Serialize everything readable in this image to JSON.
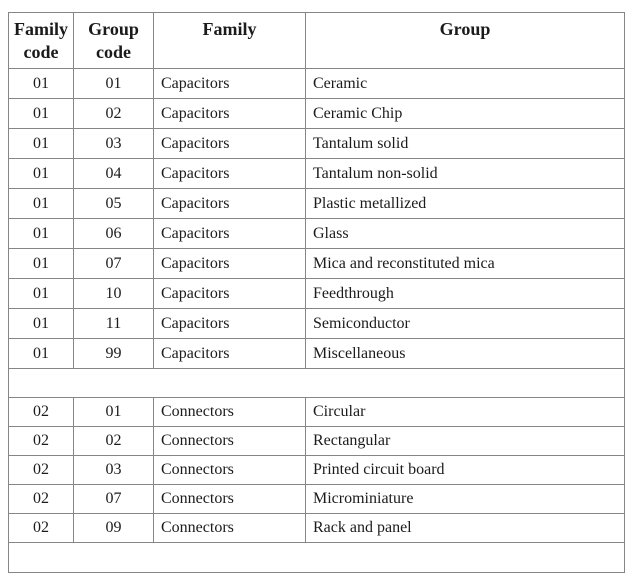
{
  "page": {
    "background_color": "#ffffff",
    "text_color": "#1b1b1b",
    "border_color": "#868686"
  },
  "table": {
    "headers": [
      {
        "label": "Family code"
      },
      {
        "label": "Group code"
      },
      {
        "label": "Family"
      },
      {
        "label": "Group"
      }
    ],
    "rows": [
      {
        "type": "data",
        "family_code": "01",
        "group_code": "01",
        "family": "Capacitors",
        "group": "Ceramic"
      },
      {
        "type": "data",
        "family_code": "01",
        "group_code": "02",
        "family": "Capacitors",
        "group": "Ceramic Chip"
      },
      {
        "type": "data",
        "family_code": "01",
        "group_code": "03",
        "family": "Capacitors",
        "group": "Tantalum solid"
      },
      {
        "type": "data",
        "family_code": "01",
        "group_code": "04",
        "family": "Capacitors",
        "group": "Tantalum non-solid"
      },
      {
        "type": "data",
        "family_code": "01",
        "group_code": "05",
        "family": "Capacitors",
        "group": "Plastic metallized"
      },
      {
        "type": "data",
        "family_code": "01",
        "group_code": "06",
        "family": "Capacitors",
        "group": "Glass"
      },
      {
        "type": "data",
        "family_code": "01",
        "group_code": "07",
        "family": "Capacitors",
        "group": "Mica and reconstituted mica"
      },
      {
        "type": "data",
        "family_code": "01",
        "group_code": "10",
        "family": "Capacitors",
        "group": "Feedthrough"
      },
      {
        "type": "data",
        "family_code": "01",
        "group_code": "11",
        "family": "Capacitors",
        "group": "Semiconductor"
      },
      {
        "type": "data",
        "family_code": "01",
        "group_code": "99",
        "family": "Capacitors",
        "group": "Miscellaneous"
      },
      {
        "type": "spacer"
      },
      {
        "type": "data",
        "family_code": "02",
        "group_code": "01",
        "family": "Connectors",
        "group": "Circular"
      },
      {
        "type": "data",
        "family_code": "02",
        "group_code": "02",
        "family": "Connectors",
        "group": "Rectangular"
      },
      {
        "type": "data",
        "family_code": "02",
        "group_code": "03",
        "family": "Connectors",
        "group": "Printed circuit board"
      },
      {
        "type": "data",
        "family_code": "02",
        "group_code": "07",
        "family": "Connectors",
        "group": "Microminiature"
      },
      {
        "type": "data",
        "family_code": "02",
        "group_code": "09",
        "family": "Connectors",
        "group": "Rack and panel"
      },
      {
        "type": "partial"
      }
    ]
  }
}
